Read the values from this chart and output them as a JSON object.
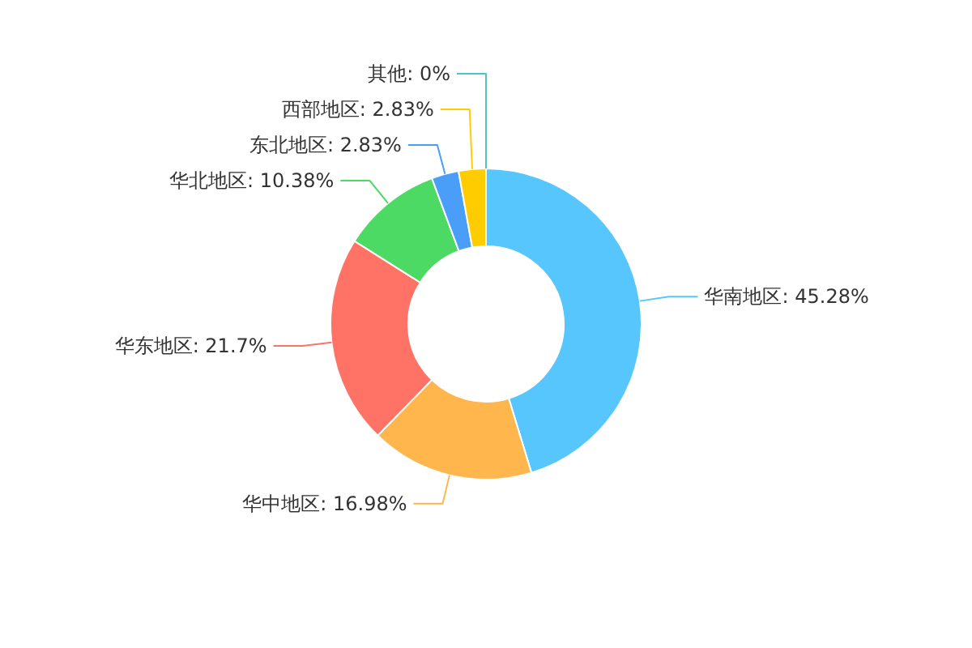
{
  "chart_data": {
    "type": "donut",
    "categories": [
      "华南地区",
      "华中地区",
      "华东地区",
      "华北地区",
      "东北地区",
      "西部地区",
      "其他"
    ],
    "values": [
      45.28,
      16.98,
      21.7,
      10.38,
      2.83,
      2.83,
      0
    ],
    "value_labels": [
      ": 45.28%",
      ": 16.98%",
      ": 21.7%",
      ": 10.38%",
      ": 2.83%",
      ": 2.83%",
      ": 0%"
    ],
    "colors": [
      "#56c6fc",
      "#ffb64d",
      "#ff7266",
      "#4cd964",
      "#4a9ef7",
      "#ffcc00",
      "#4fc3c9"
    ]
  }
}
